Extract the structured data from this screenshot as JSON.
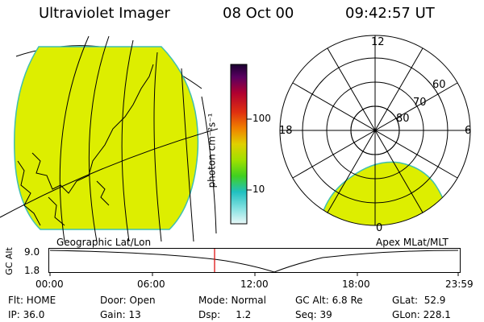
{
  "header": {
    "instrument": "Ultraviolet Imager",
    "date": "08 Oct 00",
    "time": "09:42:57 UT"
  },
  "colorbar": {
    "unit_label": "photon cm⁻²s⁻¹",
    "tick_100": "100",
    "tick_10": "10"
  },
  "polar": {
    "mlt_labels": {
      "top": "12",
      "left": "18",
      "right": "6",
      "bottom": "0"
    },
    "lat_labels": [
      "60",
      "70",
      "80"
    ]
  },
  "panels": {
    "left_caption": "Geographic Lat/Lon",
    "right_caption": "Apex MLat/MLT"
  },
  "orbit": {
    "ylabel": "GC Alt",
    "ytick_top": "9.0",
    "ytick_bottom": "1.8",
    "xticks": [
      "00:00",
      "06:00",
      "12:00",
      "18:00",
      "23:59"
    ]
  },
  "footer": {
    "flt": "Flt: HOME",
    "ip": "IP: 36.0",
    "door": "Door: Open",
    "gain": "Gain: 13",
    "mode": "Mode: Normal",
    "dsp": "Dsp:     1.2",
    "gcalt": "GC Alt: 6.8 Re",
    "seq": "Seq: 39",
    "glat": "GLat:  52.9",
    "glon": "GLon: 228.1"
  },
  "colors": {
    "fill": "#ddee00",
    "fill_edge": "#3fbfb0",
    "marker": "#dd0000"
  }
}
